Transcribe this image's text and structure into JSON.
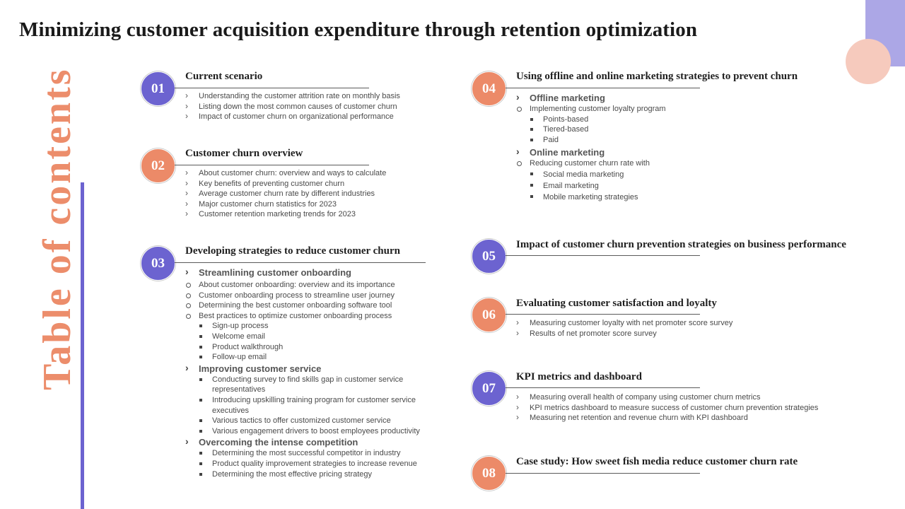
{
  "title": "Minimizing customer acquisition expenditure through retention optimization",
  "side_title": "Table of contents",
  "colors": {
    "purple": "#6c63d0",
    "orange": "#ec8a68",
    "deco_rect": "#aca7e6",
    "deco_circle": "#f6cabd"
  },
  "sections": {
    "s01": {
      "number": "01",
      "title": "Current scenario",
      "items": [
        "Understanding the customer attrition rate on monthly basis",
        "Listing down the most common causes of customer churn",
        "Impact of customer churn on organizational performance"
      ]
    },
    "s02": {
      "number": "02",
      "title": "Customer churn overview",
      "items": [
        "About customer churn: overview and ways to calculate",
        "Key benefits of preventing customer churn",
        "Average customer churn rate by different industries",
        "Major customer churn statistics for 2023",
        "Customer retention marketing trends for 2023"
      ]
    },
    "s03": {
      "number": "03",
      "title": "Developing strategies to reduce customer churn",
      "g1": {
        "label": "Streamlining customer onboarding",
        "subs": [
          "About customer onboarding: overview and its importance",
          "Customer onboarding process to streamline user journey",
          "Determining the best customer onboarding software tool",
          "Best practices to optimize customer onboarding process"
        ],
        "bullets": [
          "Sign-up process",
          "Welcome email",
          "Product walkthrough",
          "Follow-up email"
        ]
      },
      "g2": {
        "label": "Improving customer service",
        "bullets": [
          "Conducting survey to find skills gap in customer service representatives",
          "Introducing upskilling training program for customer service executives",
          "Various tactics to offer customized customer service",
          "Various engagement drivers to boost employees productivity"
        ]
      },
      "g3": {
        "label": "Overcoming the intense competition",
        "bullets": [
          "Determining the most successful competitor in industry",
          "Product quality improvement strategies to increase revenue",
          "Determining the most effective pricing strategy"
        ]
      }
    },
    "s04": {
      "number": "04",
      "title": "Using offline and online marketing strategies to prevent churn",
      "g1": {
        "label": "Offline marketing",
        "sub": "Implementing customer loyalty program",
        "bullets": [
          "Points-based",
          "Tiered-based",
          "Paid"
        ]
      },
      "g2": {
        "label": "Online marketing",
        "sub": "Reducing customer churn rate with",
        "bullets": [
          "Social media marketing",
          "Email marketing",
          "Mobile marketing strategies"
        ]
      }
    },
    "s05": {
      "number": "05",
      "title": "Impact of  customer churn prevention strategies on business performance"
    },
    "s06": {
      "number": "06",
      "title": "Evaluating customer satisfaction and loyalty",
      "items": [
        "Measuring customer loyalty with net promoter score survey",
        "Results of net promoter score survey"
      ]
    },
    "s07": {
      "number": "07",
      "title": "KPI metrics and dashboard",
      "items": [
        "Measuring overall health of company using customer churn metrics",
        "KPI metrics dashboard to measure success of customer churn prevention strategies",
        "Measuring net retention and revenue churn with KPI dashboard"
      ]
    },
    "s08": {
      "number": "08",
      "title": "Case study: How sweet fish media reduce customer churn rate"
    }
  }
}
